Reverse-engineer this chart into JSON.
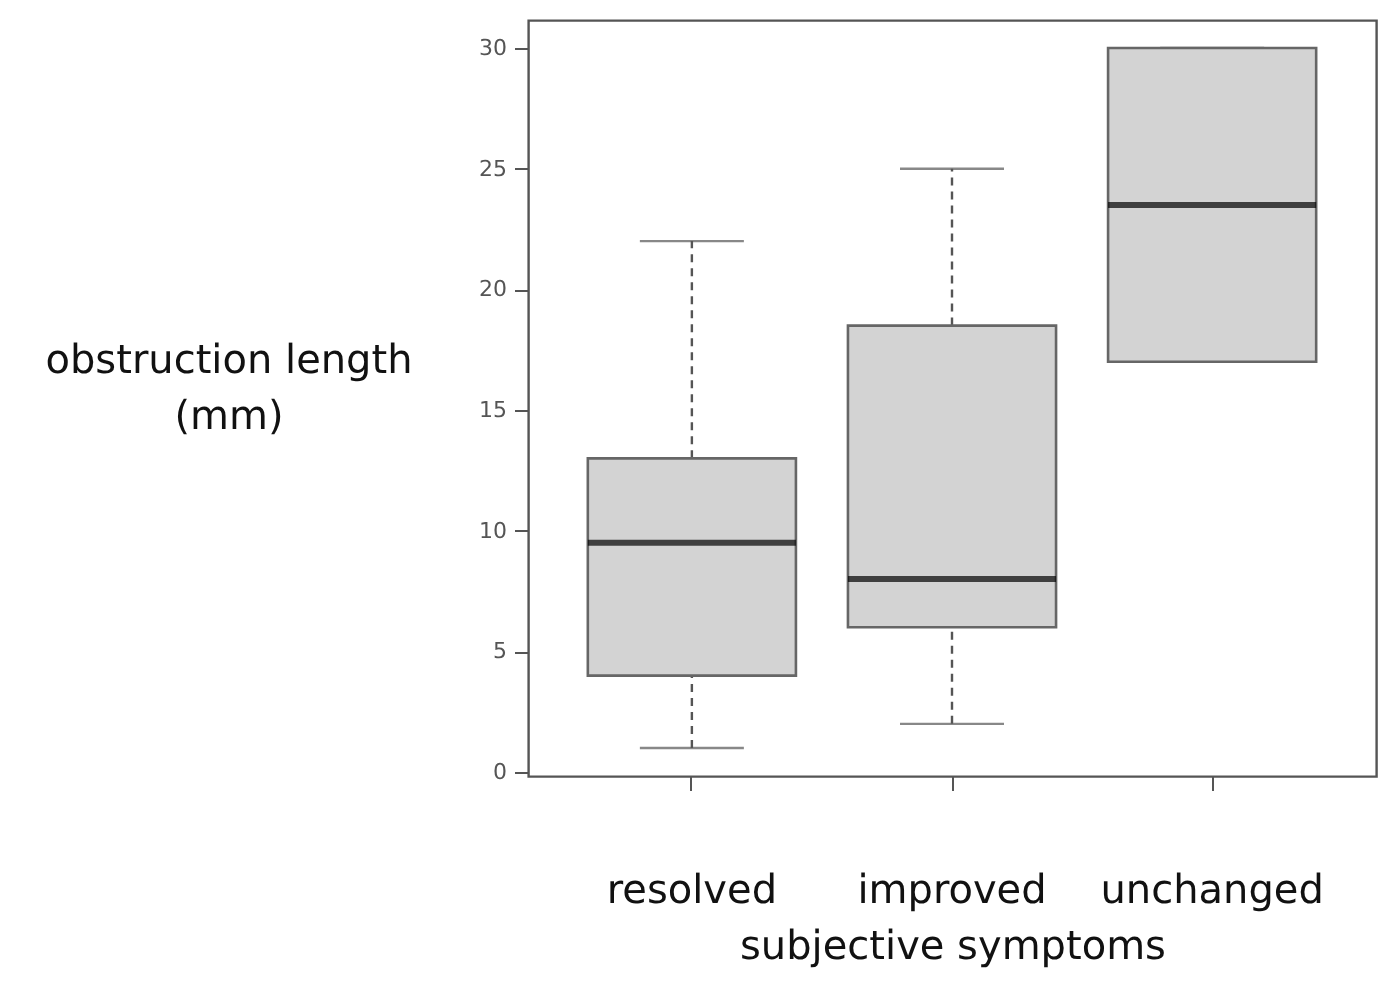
{
  "chart_data": {
    "type": "box",
    "xlabel": "subjective symptoms",
    "ylabel": "obstruction length\n(mm)",
    "categories": [
      "resolved",
      "improved",
      "unchanged"
    ],
    "color": "#d3d3d3",
    "boxes": [
      {
        "low": 1,
        "q1": 4,
        "median": 9.5,
        "q3": 13,
        "high": 22
      },
      {
        "low": 2,
        "q1": 6,
        "median": 8,
        "q3": 18.5,
        "high": 25
      },
      {
        "low": 17,
        "q1": 17,
        "median": 23.5,
        "q3": 30,
        "high": 30
      }
    ],
    "ylim": [
      -0.16,
      31.16
    ],
    "yticks": [
      0,
      5,
      10,
      15,
      20,
      25,
      30
    ]
  }
}
